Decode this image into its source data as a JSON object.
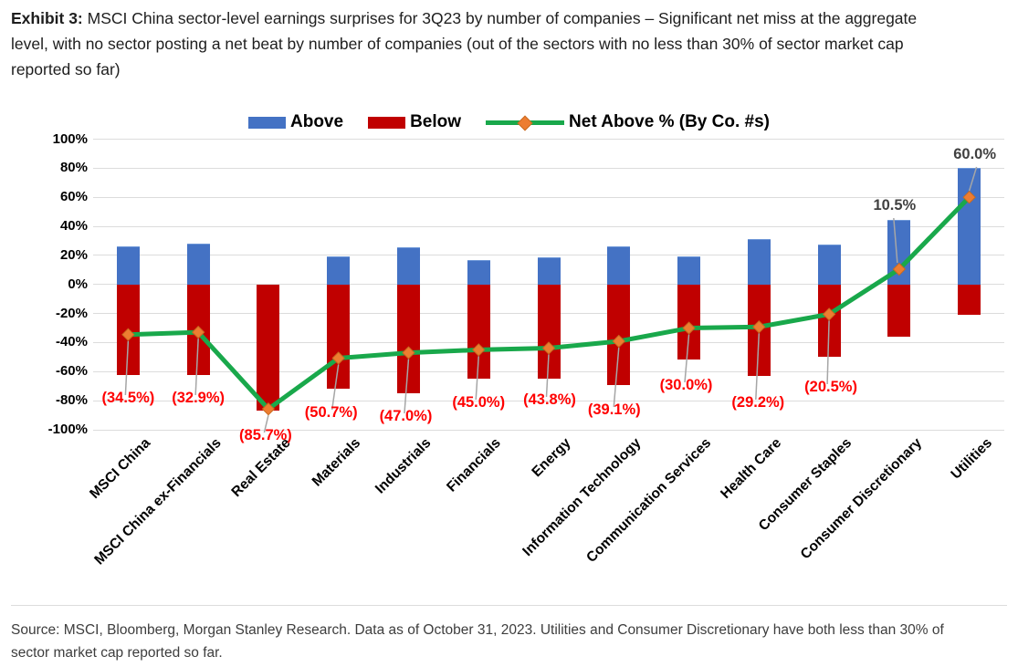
{
  "title": {
    "prefix": "Exhibit 3:",
    "line1_rest": " MSCI China sector-level earnings surprises for 3Q23 by number of companies – Significant net miss at the aggregate",
    "line2": "level, with no sector posting a net beat by number of companies (out of the sectors with no less than 30% of sector market cap",
    "line3": "reported so far)"
  },
  "legend": {
    "above_label": "Above",
    "below_label": "Below",
    "net_label": "Net Above % (By Co. #s)"
  },
  "colors": {
    "above": "#4472C4",
    "below": "#C00000",
    "net_line": "#19A84B",
    "net_marker": "#ED7D31",
    "net_marker_edge": "#C96A1F",
    "negative_label": "#FF0000",
    "positive_label": "#404040",
    "gridline": "#DCDCDC",
    "leader": "#A6A6A6"
  },
  "chart_data": {
    "type": "bar",
    "title": "Exhibit 3: MSCI China sector-level earnings surprises for 3Q23 by number of companies – Significant net miss at the aggregate level, with no sector posting a net beat by number of companies (out of the sectors with no less than 30% of sector market cap reported so far)",
    "categories": [
      "MSCI China",
      "MSCI China ex-Financials",
      "Real Estate",
      "Materials",
      "Industrials",
      "Financials",
      "Energy",
      "Information Technology",
      "Communication Services",
      "Health Care",
      "Consumer Staples",
      "Consumer Discretionary",
      "Utilities"
    ],
    "series": [
      {
        "name": "Above",
        "type": "bar",
        "values": [
          26.5,
          28,
          0,
          19.5,
          25.5,
          16.5,
          18.5,
          26,
          19.5,
          31,
          27.5,
          44.5,
          80
        ]
      },
      {
        "name": "Below",
        "type": "bar",
        "values": [
          -62.5,
          -62.5,
          -86.5,
          -72,
          -75,
          -65,
          -65,
          -69,
          -51.5,
          -63,
          -50,
          -36,
          -21
        ]
      },
      {
        "name": "Net Above % (By Co. #s)",
        "type": "line",
        "values": [
          -34.5,
          -32.9,
          -85.7,
          -50.7,
          -47.0,
          -45.0,
          -43.8,
          -39.1,
          -30.0,
          -29.2,
          -20.5,
          10.5,
          60.0
        ]
      }
    ],
    "point_labels": [
      "(34.5%)",
      "(32.9%)",
      "(85.7%)",
      "(50.7%)",
      "(47.0%)",
      "(45.0%)",
      "(43.8%)",
      "(39.1%)",
      "(30.0%)",
      "(29.2%)",
      "(20.5%)",
      "10.5%",
      "60.0%"
    ],
    "y_ticks": [
      "100%",
      "80%",
      "60%",
      "40%",
      "20%",
      "0%",
      "-20%",
      "-40%",
      "-60%",
      "-80%",
      "-100%"
    ],
    "ylim": [
      -100,
      100
    ],
    "ytick_step": 20,
    "grid": true,
    "legend_position": "top-center"
  },
  "source": {
    "line1": "Source: MSCI, Bloomberg, Morgan Stanley Research. Data as of October 31, 2023. Utilities and Consumer Discretionary have both less than 30% of",
    "line2": "sector market cap reported so far."
  }
}
